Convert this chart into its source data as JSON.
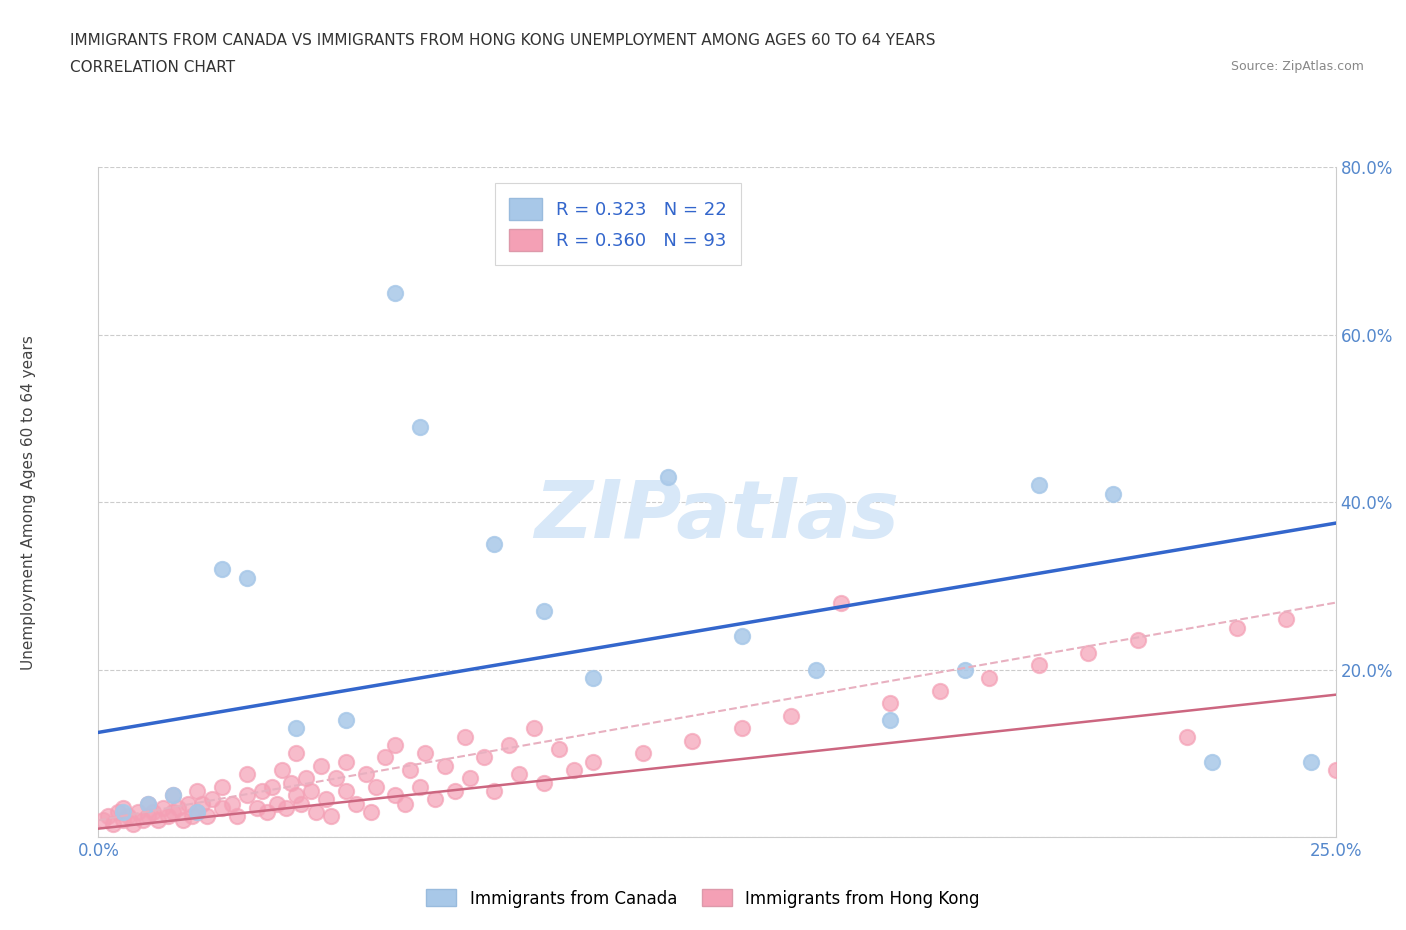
{
  "title": "IMMIGRANTS FROM CANADA VS IMMIGRANTS FROM HONG KONG UNEMPLOYMENT AMONG AGES 60 TO 64 YEARS",
  "subtitle": "CORRELATION CHART",
  "source": "Source: ZipAtlas.com",
  "ylabel": "Unemployment Among Ages 60 to 64 years",
  "xlim": [
    0.0,
    0.25
  ],
  "ylim": [
    0.0,
    0.8
  ],
  "xticks": [
    0.0,
    0.05,
    0.1,
    0.15,
    0.2,
    0.25
  ],
  "yticks": [
    0.0,
    0.2,
    0.4,
    0.6,
    0.8
  ],
  "xtick_labels": [
    "0.0%",
    "",
    "",
    "",
    "",
    "25.0%"
  ],
  "ytick_labels_right": [
    "",
    "20.0%",
    "40.0%",
    "60.0%",
    "80.0%"
  ],
  "canada_color": "#a8c8e8",
  "hong_kong_color": "#f4a0b5",
  "canada_line_color": "#3366cc",
  "hong_kong_line_color_solid": "#cc6680",
  "hong_kong_line_color_dash": "#e8b0c0",
  "R_canada": 0.323,
  "N_canada": 22,
  "R_hong_kong": 0.36,
  "N_hong_kong": 93,
  "watermark": "ZIPatlas",
  "watermark_color": "#d8e8f8",
  "canada_x": [
    0.005,
    0.01,
    0.015,
    0.02,
    0.025,
    0.03,
    0.04,
    0.05,
    0.06,
    0.065,
    0.08,
    0.09,
    0.1,
    0.115,
    0.13,
    0.145,
    0.16,
    0.175,
    0.19,
    0.205,
    0.225,
    0.245
  ],
  "canada_y": [
    0.03,
    0.04,
    0.05,
    0.03,
    0.32,
    0.31,
    0.13,
    0.14,
    0.65,
    0.49,
    0.35,
    0.27,
    0.19,
    0.43,
    0.24,
    0.2,
    0.14,
    0.2,
    0.42,
    0.41,
    0.09,
    0.09
  ],
  "hk_x": [
    0.001,
    0.002,
    0.003,
    0.004,
    0.005,
    0.005,
    0.006,
    0.007,
    0.008,
    0.009,
    0.01,
    0.01,
    0.011,
    0.012,
    0.013,
    0.014,
    0.015,
    0.015,
    0.016,
    0.017,
    0.018,
    0.019,
    0.02,
    0.02,
    0.021,
    0.022,
    0.023,
    0.025,
    0.025,
    0.027,
    0.028,
    0.03,
    0.03,
    0.032,
    0.033,
    0.034,
    0.035,
    0.036,
    0.037,
    0.038,
    0.039,
    0.04,
    0.04,
    0.041,
    0.042,
    0.043,
    0.044,
    0.045,
    0.046,
    0.047,
    0.048,
    0.05,
    0.05,
    0.052,
    0.054,
    0.055,
    0.056,
    0.058,
    0.06,
    0.06,
    0.062,
    0.063,
    0.065,
    0.066,
    0.068,
    0.07,
    0.072,
    0.074,
    0.075,
    0.078,
    0.08,
    0.083,
    0.085,
    0.088,
    0.09,
    0.093,
    0.096,
    0.1,
    0.11,
    0.12,
    0.13,
    0.14,
    0.15,
    0.16,
    0.17,
    0.18,
    0.19,
    0.2,
    0.21,
    0.22,
    0.23,
    0.24,
    0.25
  ],
  "hk_y": [
    0.02,
    0.025,
    0.015,
    0.03,
    0.02,
    0.035,
    0.025,
    0.015,
    0.03,
    0.02,
    0.025,
    0.04,
    0.03,
    0.02,
    0.035,
    0.025,
    0.03,
    0.05,
    0.035,
    0.02,
    0.04,
    0.025,
    0.03,
    0.055,
    0.04,
    0.025,
    0.045,
    0.035,
    0.06,
    0.04,
    0.025,
    0.05,
    0.075,
    0.035,
    0.055,
    0.03,
    0.06,
    0.04,
    0.08,
    0.035,
    0.065,
    0.05,
    0.1,
    0.04,
    0.07,
    0.055,
    0.03,
    0.085,
    0.045,
    0.025,
    0.07,
    0.055,
    0.09,
    0.04,
    0.075,
    0.03,
    0.06,
    0.095,
    0.05,
    0.11,
    0.04,
    0.08,
    0.06,
    0.1,
    0.045,
    0.085,
    0.055,
    0.12,
    0.07,
    0.095,
    0.055,
    0.11,
    0.075,
    0.13,
    0.065,
    0.105,
    0.08,
    0.09,
    0.1,
    0.115,
    0.13,
    0.145,
    0.28,
    0.16,
    0.175,
    0.19,
    0.205,
    0.22,
    0.235,
    0.12,
    0.25,
    0.26,
    0.08
  ]
}
